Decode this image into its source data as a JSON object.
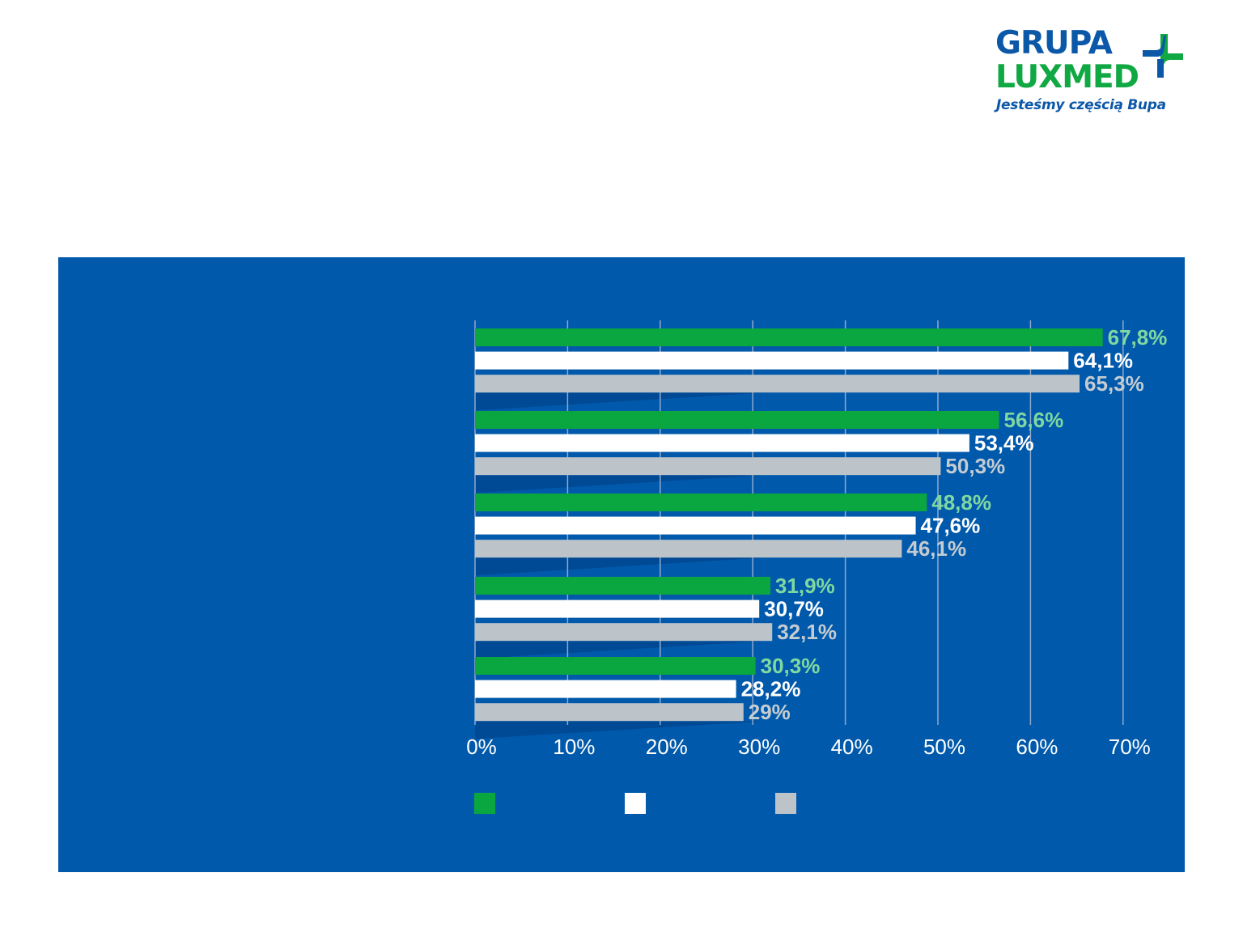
{
  "logo": {
    "line1": "GRUPA",
    "line2": "LUXMED",
    "tagline": "Jesteśmy częścią Bupa",
    "icon": "luxmed-cross-icon"
  },
  "colors": {
    "panel": "#0059ab",
    "series_green": "#0aa740",
    "series_white": "#ffffff",
    "series_gray": "#bcc4c9",
    "label_green": "#7fd8a0",
    "label_white": "#ffffff",
    "label_gray": "#c5ccd1",
    "grid": "#8fa9cc",
    "tick_text": "#ffffff",
    "shadow": "#00468f"
  },
  "chart_data": {
    "type": "bar",
    "orientation": "horizontal",
    "categories": [
      "",
      "",
      "",
      "",
      ""
    ],
    "series": [
      {
        "values": [
          67.8,
          56.6,
          48.8,
          31.9,
          30.3
        ],
        "labels": [
          "67,8%",
          "56,6%",
          "48,8%",
          "31,9%",
          "30,3%"
        ]
      },
      {
        "values": [
          64.1,
          53.4,
          47.6,
          30.7,
          28.2
        ],
        "labels": [
          "64,1%",
          "53,4%",
          "47,6%",
          "30,7%",
          "28,2%"
        ]
      },
      {
        "values": [
          65.3,
          50.3,
          46.1,
          32.1,
          29.0
        ],
        "labels": [
          "65,3%",
          "50,3%",
          "46,1%",
          "32,1%",
          "29%"
        ]
      }
    ],
    "xlim": [
      0,
      70
    ],
    "xticks": [
      0,
      10,
      20,
      30,
      40,
      50,
      60,
      70
    ],
    "xtick_labels": [
      "0%",
      "10%",
      "20%",
      "30%",
      "40%",
      "50%",
      "60%",
      "70%"
    ],
    "grid": true,
    "legend": "bottom, swatches only"
  }
}
